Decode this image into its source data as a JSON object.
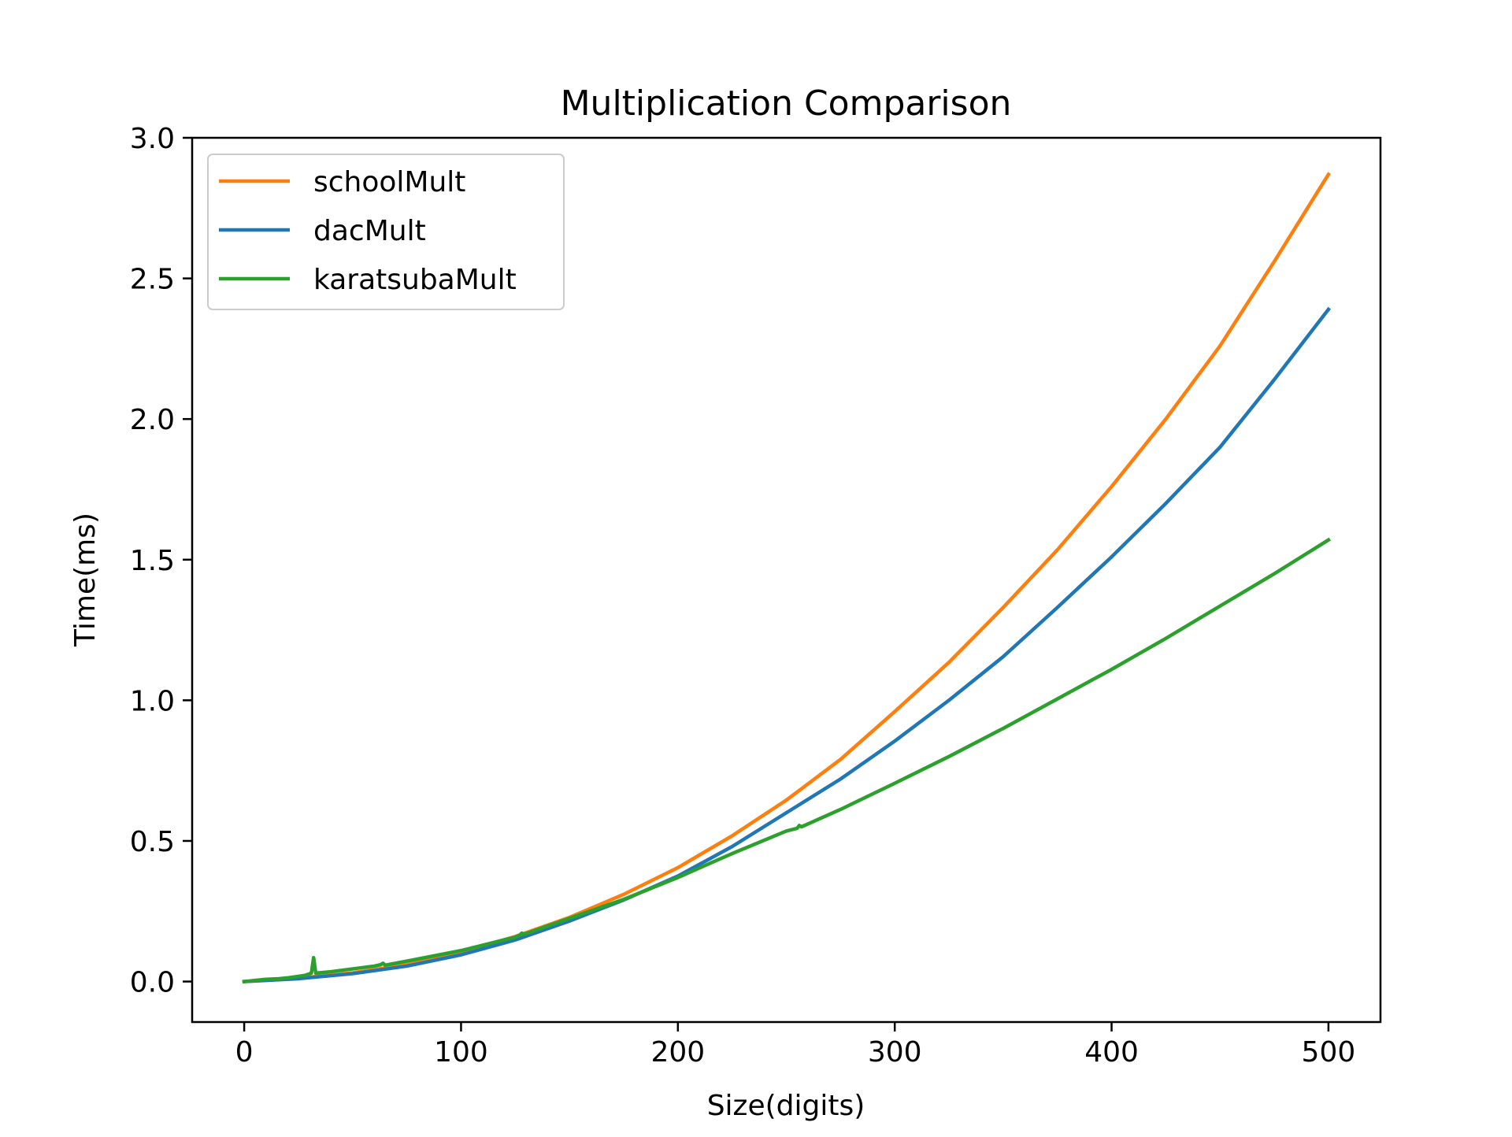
{
  "chart_data": {
    "type": "line",
    "title": "Multiplication Comparison",
    "xlabel": "Size(digits)",
    "ylabel": "Time(ms)",
    "xlim": [
      -24,
      524
    ],
    "ylim": [
      -0.144,
      3.0
    ],
    "x_ticks": [
      0,
      100,
      200,
      300,
      400,
      500
    ],
    "y_ticks": [
      0.0,
      0.5,
      1.0,
      1.5,
      2.0,
      2.5,
      3.0
    ],
    "x_tick_labels": [
      "0",
      "100",
      "200",
      "300",
      "400",
      "500"
    ],
    "y_tick_labels": [
      "0.0",
      "0.5",
      "1.0",
      "1.5",
      "2.0",
      "2.5",
      "3.0"
    ],
    "grid": false,
    "legend_position": "upper-left",
    "series": [
      {
        "name": "schoolMult",
        "color": "#ff7f0e",
        "x": [
          0,
          25,
          50,
          75,
          100,
          125,
          150,
          175,
          200,
          225,
          250,
          275,
          300,
          325,
          350,
          375,
          400,
          425,
          450,
          475,
          500
        ],
        "y": [
          0.0,
          0.012,
          0.031,
          0.06,
          0.105,
          0.16,
          0.228,
          0.31,
          0.405,
          0.518,
          0.645,
          0.79,
          0.96,
          1.135,
          1.33,
          1.535,
          1.76,
          2.0,
          2.26,
          2.56,
          2.87
        ]
      },
      {
        "name": "dacMult",
        "color": "#1f77b4",
        "x": [
          0,
          25,
          50,
          75,
          100,
          125,
          150,
          175,
          200,
          225,
          250,
          275,
          300,
          325,
          350,
          375,
          400,
          425,
          450,
          475,
          500
        ],
        "y": [
          0.0,
          0.01,
          0.028,
          0.055,
          0.095,
          0.148,
          0.215,
          0.29,
          0.375,
          0.48,
          0.6,
          0.72,
          0.855,
          1.0,
          1.155,
          1.33,
          1.51,
          1.7,
          1.9,
          2.14,
          2.39
        ]
      },
      {
        "name": "karatsubaMult",
        "color": "#2ca02c",
        "x": [
          0,
          5,
          10,
          16,
          20,
          28,
          31,
          32,
          33,
          40,
          60,
          63,
          64,
          65,
          80,
          100,
          125,
          127,
          128,
          129,
          150,
          175,
          200,
          225,
          250,
          255,
          256,
          257,
          275,
          300,
          325,
          350,
          375,
          400,
          425,
          450,
          475,
          500
        ],
        "y": [
          0.0,
          0.004,
          0.008,
          0.01,
          0.013,
          0.022,
          0.03,
          0.085,
          0.03,
          0.035,
          0.055,
          0.06,
          0.065,
          0.058,
          0.08,
          0.11,
          0.158,
          0.165,
          0.172,
          0.168,
          0.225,
          0.292,
          0.37,
          0.455,
          0.535,
          0.545,
          0.555,
          0.55,
          0.612,
          0.705,
          0.8,
          0.9,
          1.005,
          1.11,
          1.22,
          1.335,
          1.45,
          1.57
        ]
      }
    ]
  }
}
